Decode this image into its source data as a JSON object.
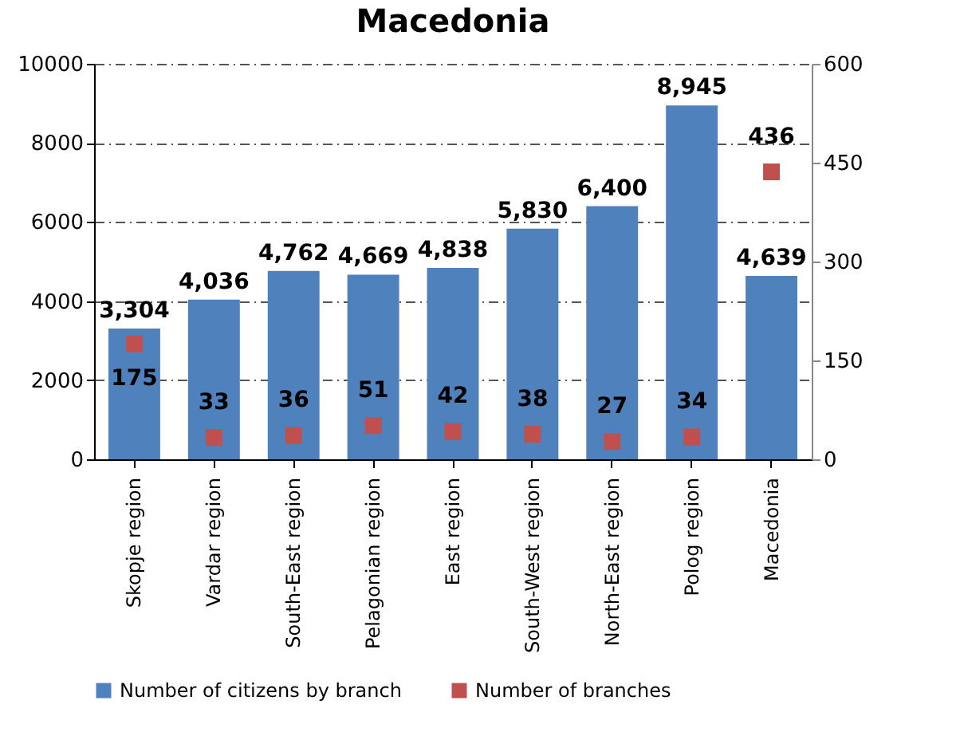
{
  "chart_data": {
    "type": "bar",
    "title": "Macedonia",
    "categories": [
      "Skopje region",
      "Vardar region",
      "South-East region",
      "Pelagonian region",
      "East region",
      "South-West region",
      "North-East region",
      "Polog region",
      "Macedonia"
    ],
    "series": [
      {
        "name": "Number of citizens by branch",
        "color": "#4f81bd",
        "values": [
          3304,
          4036,
          4762,
          4669,
          4838,
          5830,
          6400,
          8945,
          4639
        ],
        "value_labels": [
          "3,304",
          "4,036",
          "4,762",
          "4,669",
          "4,838",
          "5,830",
          "6,400",
          "8,945",
          "4,639"
        ]
      },
      {
        "name": "Number of branches",
        "type": "scatter",
        "axis": "y2",
        "color": "#c0504d",
        "values": [
          175,
          33,
          36,
          51,
          42,
          38,
          27,
          34,
          436
        ]
      }
    ],
    "ylim": [
      0,
      10000
    ],
    "yticks": [
      0,
      2000,
      4000,
      6000,
      8000,
      10000
    ],
    "y2lim": [
      0,
      600
    ],
    "y2ticks": [
      0,
      150,
      300,
      450,
      600
    ],
    "grid": "y",
    "legend": "bottom",
    "marker": "square",
    "data_labels": true
  }
}
